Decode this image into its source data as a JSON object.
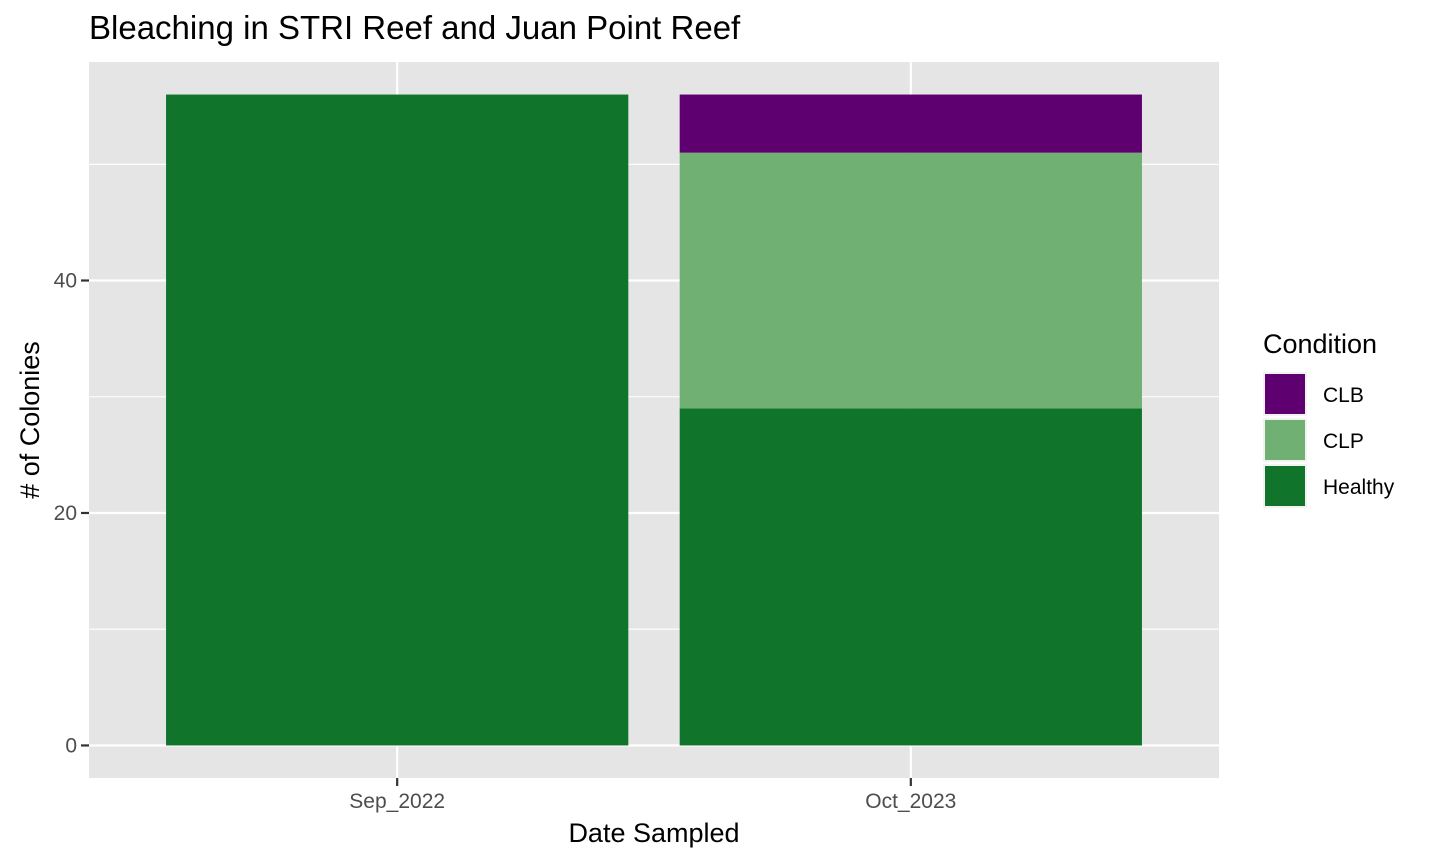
{
  "chart_data": {
    "type": "bar",
    "stacked": true,
    "title": "Bleaching in STRI Reef and Juan Point Reef",
    "xlabel": "Date Sampled",
    "ylabel": "# of Colonies",
    "categories": [
      "Sep_2022",
      "Oct_2023"
    ],
    "series": [
      {
        "name": "Healthy",
        "values": [
          56,
          29
        ],
        "color": "#11742b"
      },
      {
        "name": "CLP",
        "values": [
          0,
          22
        ],
        "color": "#70b073"
      },
      {
        "name": "CLB",
        "values": [
          0,
          5
        ],
        "color": "#5e0070"
      }
    ],
    "ylim": [
      -2.8,
      58.8
    ],
    "yticks": [
      0,
      20,
      40
    ],
    "grid": true,
    "panel_background": "#e5e5e5",
    "legend": {
      "title": "Condition",
      "position": "right",
      "entries": [
        "CLB",
        "CLP",
        "Healthy"
      ]
    }
  }
}
